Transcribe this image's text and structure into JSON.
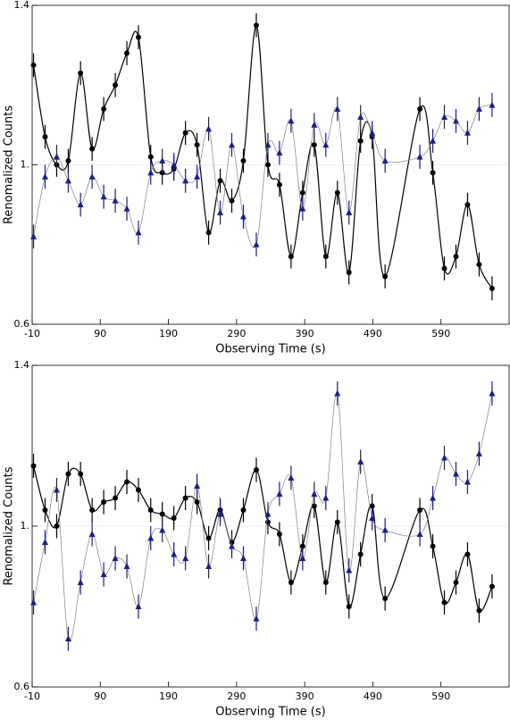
{
  "chart_data": [
    {
      "type": "line",
      "xlabel": "Observing Time (s)",
      "ylabel": "Renomalized Counts",
      "xlim": [
        -10,
        690
      ],
      "ylim": [
        0.6,
        1.4
      ],
      "xticks": [
        -10,
        90,
        190,
        290,
        390,
        490,
        590
      ],
      "yticks": [
        0.6,
        {
          "value": 1.0,
          "label": "1."
        },
        {
          "value": 1.4,
          "label": "1.4"
        }
      ],
      "reference_line": 1,
      "x": [
        -8,
        9,
        26,
        43,
        61,
        78,
        95,
        112,
        129,
        146,
        164,
        181,
        198,
        215,
        232,
        249,
        266,
        283,
        300,
        319,
        336,
        353,
        370,
        387,
        404,
        421,
        438,
        455,
        472,
        489,
        508,
        559,
        578,
        595,
        612,
        629,
        646,
        665
      ],
      "series": [
        {
          "color": "#000000",
          "line_color": "#000000",
          "marker": "circle",
          "error": 0.03,
          "values": [
            1.25,
            1.07,
            1.0,
            1.01,
            1.23,
            1.04,
            1.14,
            1.2,
            1.28,
            1.32,
            1.02,
            0.98,
            0.99,
            1.08,
            1.05,
            0.83,
            0.96,
            0.91,
            1.01,
            1.35,
            1.0,
            0.95,
            0.77,
            0.93,
            1.05,
            0.77,
            0.93,
            0.73,
            1.06,
            1.07,
            0.72,
            1.14,
            0.98,
            0.74,
            0.77,
            0.9,
            0.75,
            0.69
          ]
        },
        {
          "color": "#1c1c8f",
          "line_color": "#808080",
          "marker": "triangle",
          "error": 0.03,
          "values": [
            0.82,
            0.97,
            1.02,
            0.96,
            0.9,
            0.97,
            0.92,
            0.91,
            0.89,
            0.83,
            0.98,
            1.01,
            1.0,
            0.96,
            0.97,
            1.09,
            0.88,
            1.05,
            0.87,
            0.8,
            1.05,
            1.03,
            1.11,
            0.89,
            1.1,
            1.05,
            1.14,
            0.88,
            1.12,
            1.08,
            1.01,
            1.02,
            1.06,
            1.12,
            1.11,
            1.08,
            1.14,
            1.15
          ]
        }
      ]
    },
    {
      "type": "line",
      "xlabel": "Observing Time (s)",
      "ylabel": "Renomalized Counts",
      "xlim": [
        -10,
        690
      ],
      "ylim": [
        0.6,
        1.4
      ],
      "xticks": [
        -10,
        90,
        190,
        290,
        390,
        490,
        590
      ],
      "yticks": [
        0.6,
        {
          "value": 1.0,
          "label": "1."
        },
        {
          "value": 1.4,
          "label": "1.4"
        }
      ],
      "reference_line": 1,
      "x": [
        -8,
        9,
        26,
        43,
        61,
        78,
        95,
        112,
        129,
        146,
        164,
        181,
        198,
        215,
        232,
        249,
        266,
        283,
        300,
        319,
        336,
        353,
        370,
        387,
        404,
        421,
        438,
        455,
        472,
        489,
        508,
        559,
        578,
        595,
        612,
        629,
        646,
        665
      ],
      "series": [
        {
          "color": "#000000",
          "line_color": "#000000",
          "marker": "circle",
          "error": 0.03,
          "values": [
            1.15,
            1.04,
            1.0,
            1.13,
            1.13,
            1.04,
            1.06,
            1.07,
            1.11,
            1.09,
            1.04,
            1.03,
            1.02,
            1.07,
            1.06,
            0.97,
            1.04,
            0.96,
            1.04,
            1.14,
            1.01,
            0.98,
            0.86,
            0.95,
            1.05,
            0.86,
            1.01,
            0.8,
            0.93,
            1.05,
            0.82,
            1.04,
            0.95,
            0.81,
            0.86,
            0.93,
            0.79,
            0.85
          ]
        },
        {
          "color": "#1c1c8f",
          "line_color": "#808080",
          "marker": "triangle",
          "error": 0.03,
          "values": [
            0.81,
            0.96,
            1.09,
            0.72,
            0.86,
            0.98,
            0.88,
            0.92,
            0.9,
            0.8,
            0.97,
            0.99,
            0.93,
            0.92,
            1.1,
            0.9,
            1.03,
            0.95,
            0.92,
            0.77,
            1.03,
            1.08,
            1.12,
            0.92,
            1.08,
            1.07,
            1.33,
            0.89,
            1.16,
            1.02,
            0.99,
            0.98,
            1.07,
            1.17,
            1.13,
            1.11,
            1.18,
            1.33
          ]
        }
      ]
    }
  ]
}
